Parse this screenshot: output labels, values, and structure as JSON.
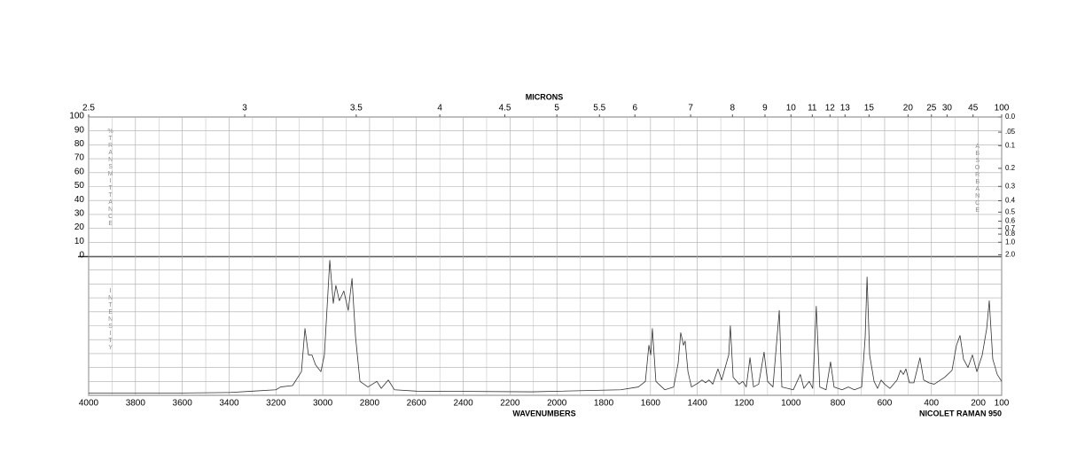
{
  "chart_data": {
    "type": "line",
    "top_axis_label": "MICRONS",
    "xlabel": "WAVENUMBERS",
    "instrument": "NICOLET RAMAN 950",
    "ylabel": "%TRANSMITTANCE",
    "ylabel_lower": "INTENSITY",
    "y2label": "ABSORBANCE",
    "xlim": [
      4000,
      100
    ],
    "xticks": [
      4000,
      3800,
      3600,
      3400,
      3200,
      3000,
      2800,
      2600,
      2400,
      2200,
      2000,
      1800,
      1600,
      1400,
      1200,
      1000,
      800,
      600,
      400,
      200,
      100
    ],
    "xgrid": [
      3900,
      3700,
      3500,
      3300,
      3100,
      2900,
      2700,
      2500,
      2300,
      2100,
      1900,
      1700,
      1500,
      1300,
      1100,
      900,
      700,
      500,
      300
    ],
    "micron_ticks": [
      2.5,
      3,
      3.5,
      4,
      4.5,
      5,
      5.5,
      6,
      7,
      8,
      9,
      10,
      11,
      12,
      13,
      15,
      20,
      25,
      30,
      45,
      100
    ],
    "ylim": [
      0,
      100
    ],
    "yticks": [
      0,
      10,
      20,
      30,
      40,
      50,
      60,
      70,
      80,
      90,
      100
    ],
    "intensity_lim": [
      0,
      100
    ],
    "y2ticks": [
      {
        "value": 0,
        "label": "0.0"
      },
      {
        "value": 0.05,
        "label": ".05"
      },
      0.1,
      0.2,
      0.3,
      0.4,
      0.5,
      0.6,
      0.7,
      0.8,
      {
        "value": 1,
        "label": "1.0"
      },
      {
        "value": 2,
        "label": "2.0"
      }
    ],
    "color": "#333333",
    "grid": true,
    "x": [
      4000,
      3700,
      3400,
      3300,
      3200,
      3180,
      3129,
      3091,
      3076,
      3061,
      3046,
      3031,
      3008,
      2993,
      2970,
      2955,
      2944,
      2929,
      2910,
      2891,
      2875,
      2860,
      2841,
      2807,
      2769,
      2750,
      2720,
      2694,
      2599,
      2107,
      1728,
      1652,
      1622,
      1607,
      1599,
      1592,
      1577,
      1539,
      1501,
      1482,
      1471,
      1459,
      1452,
      1440,
      1425,
      1395,
      1380,
      1365,
      1350,
      1334,
      1312,
      1296,
      1281,
      1266,
      1259,
      1247,
      1221,
      1206,
      1191,
      1175,
      1160,
      1138,
      1115,
      1100,
      1077,
      1050,
      1039,
      990,
      960,
      945,
      922,
      907,
      892,
      877,
      850,
      831,
      816,
      782,
      755,
      729,
      698,
      683,
      675,
      664,
      645,
      630,
      615,
      600,
      577,
      547,
      532,
      520,
      509,
      494,
      475,
      449,
      433,
      411,
      388,
      343,
      312,
      293,
      278,
      263,
      244,
      225,
      206,
      183,
      164,
      153,
      138,
      119,
      100
    ],
    "values": [
      1.5,
      1.5,
      2,
      3,
      4,
      6,
      7,
      17,
      48,
      29,
      29,
      22,
      17,
      29,
      97,
      66,
      79,
      68,
      75,
      61,
      84,
      42,
      10,
      6,
      10,
      5,
      11,
      4,
      3,
      2.5,
      4,
      6,
      10,
      36,
      29,
      48,
      10,
      4,
      6,
      23,
      45,
      36,
      39,
      17,
      6,
      9,
      11,
      9,
      11,
      8,
      19,
      11,
      20,
      29,
      50,
      13,
      8,
      10,
      6,
      27,
      6,
      8,
      31,
      10,
      6,
      61,
      6,
      4,
      15,
      5,
      10,
      5,
      64,
      6,
      4,
      24,
      6,
      4,
      6,
      4,
      6,
      42,
      85,
      29,
      10,
      5,
      11,
      8,
      5,
      11,
      18,
      15,
      19,
      9,
      9,
      27,
      11,
      9,
      8,
      13,
      18,
      36,
      43,
      26,
      20,
      29,
      17,
      29,
      48,
      68,
      26,
      15,
      10
    ]
  }
}
